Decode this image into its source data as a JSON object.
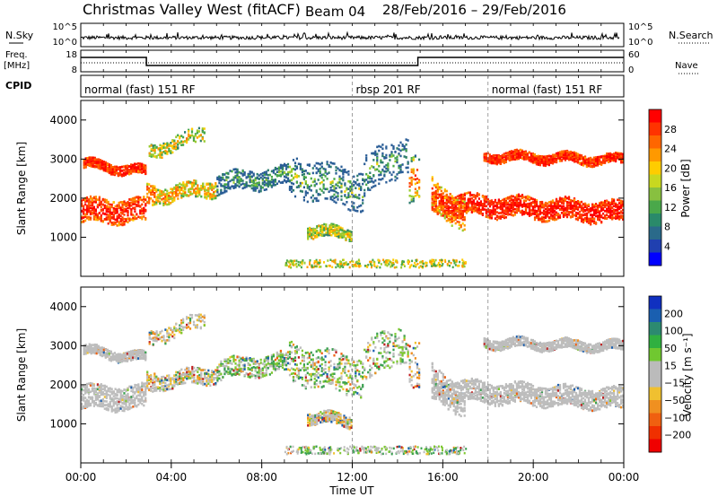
{
  "header": {
    "station": "Christmas Valley West (fitACF)",
    "beam": "Beam 04",
    "dates": "28/Feb/2016 – 29/Feb/2016"
  },
  "nsky_panel": {
    "label": "N.Sky",
    "left_ticks": [
      "10^5",
      "10^0"
    ],
    "right_ticks": [
      "10^5",
      "10^0"
    ],
    "right_label": "N.Search"
  },
  "freq_panel": {
    "label_line1": "Freq.",
    "label_line2": "[MHz]",
    "left_ticks": [
      "18",
      "8"
    ],
    "right_ticks": [
      "60",
      "0"
    ],
    "right_label": "Nave"
  },
  "cpid_panel": {
    "label": "CPID",
    "segments": [
      {
        "text": "normal (fast) 151 RF",
        "start_h": 0
      },
      {
        "text": "rbsp 201 RF",
        "start_h": 12
      },
      {
        "text": "normal (fast) 151 RF",
        "start_h": 18
      }
    ]
  },
  "chart_data": [
    {
      "type": "heatmap",
      "name": "Power",
      "ylabel": "Slant Range [km]",
      "yticks": [
        "4000",
        "3000",
        "2000",
        "1000"
      ],
      "ylim": [
        0,
        4500
      ],
      "colorbar_label": "Power [dB]",
      "colorbar_ticks": [
        "28",
        "24",
        "20",
        "16",
        "12",
        "8",
        "4"
      ],
      "colorbar_colors": [
        "#ff0000",
        "#ff3300",
        "#ff6600",
        "#ff9900",
        "#ffcc00",
        "#c8d820",
        "#88c040",
        "#4aa84a",
        "#2a8a6a",
        "#2a6a8a",
        "#2040b0",
        "#0000ff"
      ],
      "colorbar_range": [
        0,
        30
      ]
    },
    {
      "type": "heatmap",
      "name": "Velocity",
      "ylabel": "Slant Range [km]",
      "yticks": [
        "4000",
        "3000",
        "2000",
        "1000"
      ],
      "ylim": [
        0,
        4500
      ],
      "colorbar_label": "Velocity [m s⁻¹]",
      "colorbar_ticks": [
        "200",
        "100",
        "50",
        "15",
        "−15",
        "−50",
        "−100",
        "−200"
      ],
      "colorbar_colors": [
        "#1030c0",
        "#1a5fb0",
        "#2c8a70",
        "#30b040",
        "#70c830",
        "#bbbbbb",
        "#bbbbbb",
        "#f0c030",
        "#f09020",
        "#f06010",
        "#f03000",
        "#f00000"
      ]
    }
  ],
  "xaxis": {
    "label": "Time UT",
    "ticks": [
      "00:00",
      "04:00",
      "08:00",
      "12:00",
      "16:00",
      "20:00",
      "00:00"
    ],
    "range_hours": [
      0,
      24
    ]
  }
}
